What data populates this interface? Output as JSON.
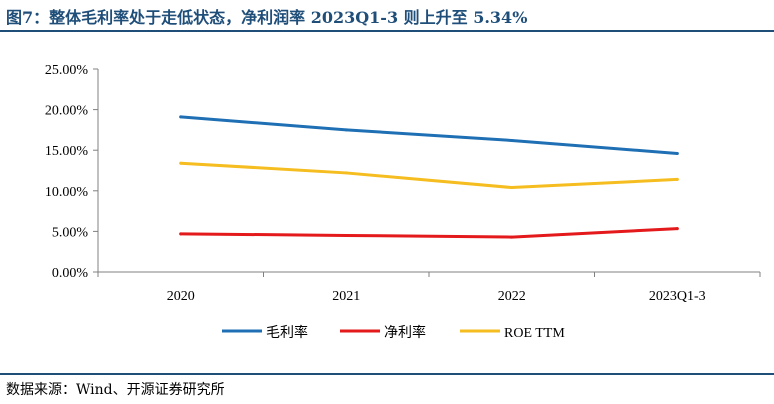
{
  "header": {
    "title": "图7：整体毛利率处于走低状态，净利润率 2023Q1-3 则上升至 5.34%"
  },
  "footer": {
    "source": "数据来源：Wind、开源证券研究所"
  },
  "chart_data": {
    "type": "line",
    "categories": [
      "2020",
      "2021",
      "2022",
      "2023Q1-3"
    ],
    "series": [
      {
        "name": "毛利率",
        "values": [
          19.1,
          17.5,
          16.2,
          14.6
        ],
        "color": "#1f6fb4"
      },
      {
        "name": "净利率",
        "values": [
          4.7,
          4.5,
          4.3,
          5.34
        ],
        "color": "#e3191b"
      },
      {
        "name": "ROE TTM",
        "values": [
          13.4,
          12.2,
          10.4,
          11.4
        ],
        "color": "#f5bd1f"
      }
    ],
    "yticks": [
      "0.00%",
      "5.00%",
      "10.00%",
      "15.00%",
      "20.00%",
      "25.00%"
    ],
    "ylim": [
      0,
      25
    ],
    "ylabel_format": "percent_2dp",
    "grid": false,
    "legend": "bottom"
  }
}
